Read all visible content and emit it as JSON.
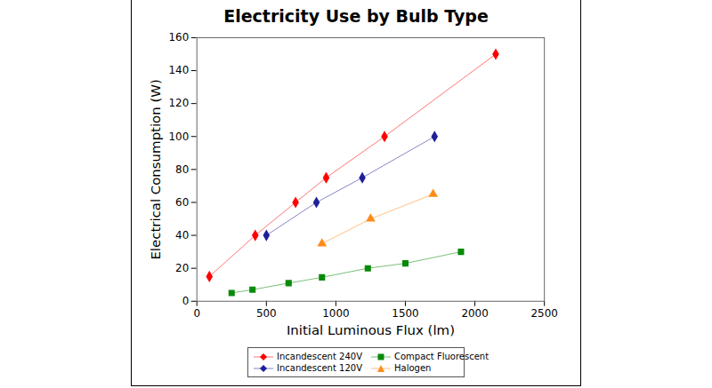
{
  "chart_data": {
    "type": "line",
    "title": "Electricity Use by Bulb Type",
    "x_label": "Initial Luminous Flux (lm)",
    "y_label": "Electrical Consumption (W)",
    "xlim": [
      0,
      2500
    ],
    "xticks": [
      0,
      500,
      1000,
      1500,
      2000,
      2500
    ],
    "ylim": [
      0,
      160
    ],
    "yticks": [
      0,
      20,
      40,
      60,
      80,
      100,
      120,
      140,
      160
    ],
    "grid": false,
    "legend": "bottom",
    "series": [
      {
        "name": "Incandescent 240V",
        "color": "#ff0000",
        "marker": "diamond",
        "x": [
          90,
          420,
          710,
          930,
          1350,
          2150
        ],
        "values": [
          15,
          40,
          60,
          75,
          100,
          150
        ]
      },
      {
        "name": "Incandescent 120V",
        "color": "#1f1f9a",
        "marker": "diamond",
        "x": [
          500,
          860,
          1190,
          1710
        ],
        "values": [
          40,
          60,
          75,
          100
        ]
      },
      {
        "name": "Compact Fluorescent",
        "color": "#0a8a0a",
        "marker": "square",
        "x": [
          250,
          400,
          660,
          900,
          1230,
          1500,
          1900
        ],
        "values": [
          5,
          7,
          11,
          14.5,
          20,
          23,
          30
        ]
      },
      {
        "name": "Halogen",
        "color": "#ff8c1a",
        "marker": "triangle",
        "x": [
          900,
          1250,
          1700
        ],
        "values": [
          35,
          50,
          65
        ]
      }
    ]
  }
}
